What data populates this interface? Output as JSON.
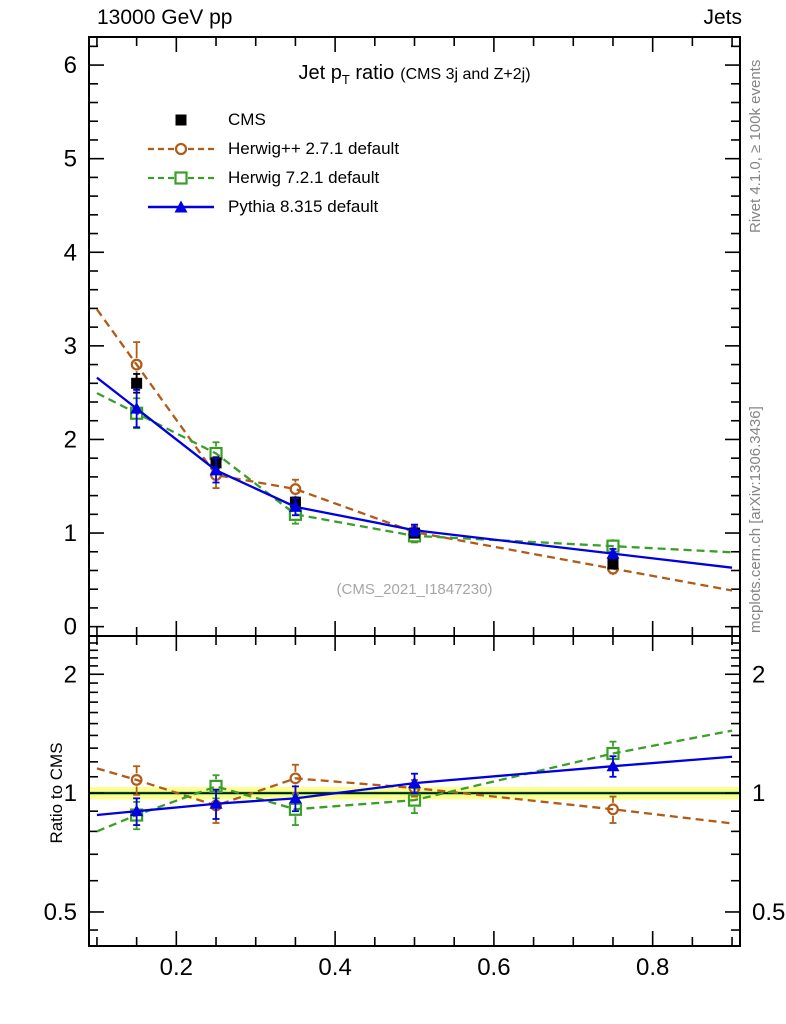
{
  "header": {
    "left": "13000 GeV pp",
    "right": "Jets"
  },
  "title": {
    "lead": "Jet p",
    "sub": "T",
    "tail": " ratio",
    "note": "(CMS 3j and Z+2j)"
  },
  "watermark": "(CMS_2021_I1847230)",
  "side_texts": {
    "rivet": "Rivet 4.1.0, ≥ 100k events",
    "mcplots": "mcplots.cern.ch [arXiv:1306.3436]"
  },
  "ratio_ylabel": "Ratio to CMS",
  "colors": {
    "cms": "#000000",
    "herwigpp": "#b05c18",
    "herwig7": "#3a9e28",
    "pythia": "#0000e0",
    "band_outer": "#ffff91",
    "band_inner": "#d9f58c",
    "band_line": "#2eb82e",
    "frame": "#000000",
    "watermark": "#a6a6a6",
    "side_text": "#858585"
  },
  "chart_data": [
    {
      "type": "scatter",
      "panel": "main",
      "title": "Jet pT ratio (CMS 3j and Z+2j)",
      "x": [
        0.15,
        0.25,
        0.35,
        0.5,
        0.75
      ],
      "bin_edges": [
        0.1,
        0.9
      ],
      "xlim": [
        0.09,
        0.91
      ],
      "ylim": [
        -0.1,
        6.3
      ],
      "yscale": "linear",
      "yticks": [
        0,
        1,
        2,
        3,
        4,
        5,
        6
      ],
      "ytick_labels": [
        "0",
        "1",
        "2",
        "3",
        "4",
        "5",
        "6"
      ],
      "y_minor_step": 0.2,
      "xticks": [
        0.2,
        0.4,
        0.6,
        0.8
      ],
      "xtick_labels": [
        "0.2",
        "0.4",
        "0.6",
        "0.8"
      ],
      "x_minor_step": 0.05,
      "grid": false,
      "legend_position": "top-left-inside",
      "series": [
        {
          "name": "CMS",
          "marker": "filled-square",
          "line": "none",
          "color_key": "cms",
          "values": [
            2.6,
            1.75,
            1.33,
            1.0,
            0.67
          ],
          "errors": [
            0.1,
            0.06,
            0.05,
            0.04,
            0.04
          ]
        },
        {
          "name": "Herwig++ 2.7.1 default",
          "marker": "open-circle",
          "line": "dashed",
          "color_key": "herwigpp",
          "values": [
            2.8,
            1.62,
            1.47,
            1.01,
            0.62
          ],
          "errors": [
            0.24,
            0.14,
            0.1,
            0.06,
            0.05
          ]
        },
        {
          "name": "Herwig 7.2.1 default",
          "marker": "open-square",
          "line": "dashed",
          "color_key": "herwig7",
          "values": [
            2.28,
            1.85,
            1.2,
            0.97,
            0.86
          ],
          "errors": [
            0.16,
            0.12,
            0.1,
            0.07,
            0.06
          ]
        },
        {
          "name": "Pythia 8.315 default",
          "marker": "filled-triangle",
          "line": "solid",
          "color_key": "pythia",
          "values": [
            2.33,
            1.67,
            1.28,
            1.03,
            0.78
          ],
          "errors": [
            0.2,
            0.13,
            0.09,
            0.06,
            0.05
          ]
        }
      ]
    },
    {
      "type": "ratio",
      "panel": "ratio",
      "ylabel": "Ratio to CMS",
      "x": [
        0.15,
        0.25,
        0.35,
        0.5,
        0.75
      ],
      "bin_edges": [
        0.1,
        0.9
      ],
      "xlim": [
        0.09,
        0.91
      ],
      "ylim": [
        0.41,
        2.5
      ],
      "yscale": "log",
      "yticks": [
        0.5,
        1,
        2
      ],
      "ytick_labels": [
        "0.5",
        "1",
        "2"
      ],
      "y_minor": [
        0.45,
        0.6,
        0.7,
        0.8,
        0.9,
        1.1,
        1.2,
        1.3,
        1.4,
        1.5,
        1.6,
        1.7,
        1.8,
        1.9,
        2.1,
        2.2,
        2.3,
        2.4
      ],
      "xticks": [
        0.2,
        0.4,
        0.6,
        0.8
      ],
      "xtick_labels": [
        "0.2",
        "0.4",
        "0.6",
        "0.8"
      ],
      "x_minor_step": 0.05,
      "band": {
        "center": 1.0,
        "outer": [
          0.964,
          1.036
        ],
        "inner": [
          0.988,
          1.012
        ]
      },
      "series": [
        {
          "name": "Herwig++ 2.7.1 default",
          "marker": "open-circle",
          "line": "dashed",
          "color_key": "herwigpp",
          "values": [
            1.08,
            0.93,
            1.09,
            1.03,
            0.91
          ],
          "errors": [
            0.09,
            0.09,
            0.09,
            0.05,
            0.07
          ]
        },
        {
          "name": "Herwig 7.2.1 default",
          "marker": "open-square",
          "line": "dashed",
          "color_key": "herwig7",
          "values": [
            0.88,
            1.04,
            0.91,
            0.96,
            1.26
          ],
          "errors": [
            0.07,
            0.07,
            0.08,
            0.07,
            0.09
          ]
        },
        {
          "name": "Pythia 8.315 default",
          "marker": "filled-triangle",
          "line": "solid",
          "color_key": "pythia",
          "values": [
            0.9,
            0.94,
            0.97,
            1.06,
            1.17
          ],
          "errors": [
            0.07,
            0.08,
            0.07,
            0.06,
            0.07
          ]
        }
      ]
    }
  ]
}
